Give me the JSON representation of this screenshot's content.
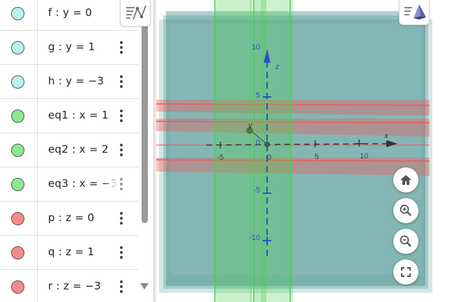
{
  "algebra": {
    "rows": [
      {
        "expr": "f : y = 0",
        "color": "#b8f0f0",
        "faded": false
      },
      {
        "expr": "g : y = 1",
        "color": "#b8f0f0",
        "faded": false
      },
      {
        "expr": "h : y = −3",
        "color": "#b8f0f0",
        "faded": false
      },
      {
        "expr": "eq1 : x = 1",
        "color": "#8ee88e",
        "faded": false
      },
      {
        "expr": "eq2 : x = 2",
        "color": "#8ee88e",
        "faded": false
      },
      {
        "expr": "eq3 : x = −3",
        "color": "#8ee88e",
        "faded": true
      },
      {
        "expr": "p : z = 0",
        "color": "#f58a8a",
        "faded": false
      },
      {
        "expr": "q : z = 1",
        "color": "#f58a8a",
        "faded": false
      },
      {
        "expr": "r : z = −3",
        "color": "#f58a8a",
        "faded": false
      }
    ]
  },
  "view3d": {
    "axes": {
      "x_label": "x",
      "y_label": "y",
      "z_label": "z",
      "x_ticks": [
        "-5",
        "0",
        "5",
        "10"
      ],
      "z_ticks": [
        "10",
        "5",
        "0",
        "-5",
        "-10"
      ]
    },
    "colors": {
      "y_planes": "#3f8f8a",
      "x_planes": "#4ccf4c",
      "z_planes": "#f05a5a",
      "z_axis": "#2a52c8"
    }
  },
  "icons": {
    "algebra_toggle": "algebra-view-icon",
    "style_toggle": "pyramid-icon",
    "home": "home-icon",
    "zoom_in": "zoom-in-icon",
    "zoom_out": "zoom-out-icon",
    "fullscreen": "fullscreen-icon"
  }
}
